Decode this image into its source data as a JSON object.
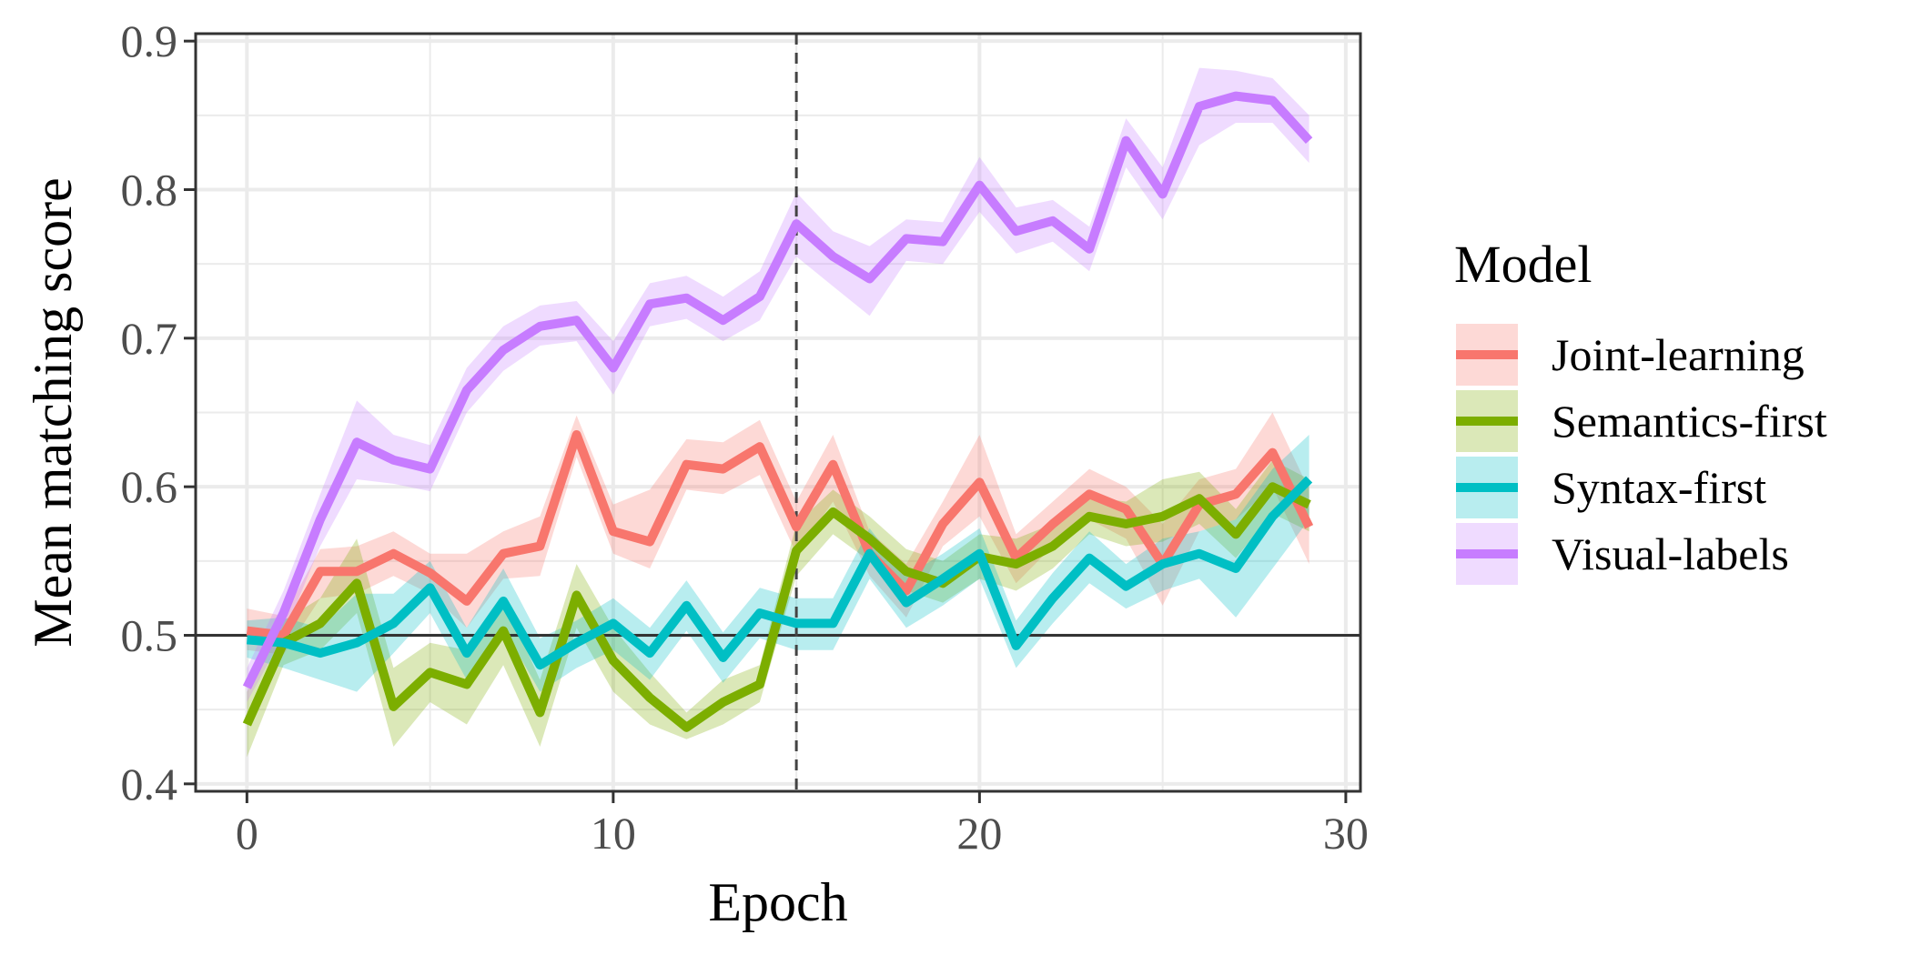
{
  "chart_data": {
    "type": "line",
    "title": "",
    "xlabel": "Epoch",
    "ylabel": "Mean matching score",
    "xlim": [
      -1.4,
      30.4
    ],
    "ylim": [
      0.395,
      0.905
    ],
    "x_ticks": [
      0,
      10,
      20,
      30
    ],
    "y_ticks": [
      0.4,
      0.5,
      0.6,
      0.7,
      0.8,
      0.9
    ],
    "x_tick_labels": [
      "0",
      "10",
      "20",
      "30"
    ],
    "y_tick_labels": [
      "0.4",
      "0.5",
      "0.6",
      "0.7",
      "0.8",
      "0.9"
    ],
    "grid": true,
    "hline": 0.5,
    "vline": 15,
    "legend_title": "Model",
    "legend_position": "right",
    "x": [
      0,
      1,
      2,
      3,
      4,
      5,
      6,
      7,
      8,
      9,
      10,
      11,
      12,
      13,
      14,
      15,
      16,
      17,
      18,
      19,
      20,
      21,
      22,
      23,
      24,
      25,
      26,
      27,
      28,
      29
    ],
    "series": [
      {
        "name": "Joint-learning",
        "color": "#F8766D",
        "values": [
          0.503,
          0.5,
          0.543,
          0.543,
          0.555,
          0.542,
          0.523,
          0.555,
          0.56,
          0.635,
          0.57,
          0.563,
          0.615,
          0.612,
          0.627,
          0.573,
          0.615,
          0.555,
          0.53,
          0.575,
          0.603,
          0.552,
          0.575,
          0.595,
          0.585,
          0.548,
          0.588,
          0.595,
          0.623,
          0.573
        ],
        "lower": [
          0.49,
          0.487,
          0.525,
          0.528,
          0.54,
          0.528,
          0.505,
          0.538,
          0.54,
          0.62,
          0.555,
          0.545,
          0.598,
          0.595,
          0.608,
          0.555,
          0.59,
          0.54,
          0.512,
          0.56,
          0.58,
          0.535,
          0.56,
          0.578,
          0.565,
          0.52,
          0.57,
          0.578,
          0.6,
          0.548
        ],
        "upper": [
          0.518,
          0.513,
          0.558,
          0.56,
          0.57,
          0.555,
          0.555,
          0.57,
          0.58,
          0.648,
          0.588,
          0.598,
          0.632,
          0.63,
          0.645,
          0.59,
          0.635,
          0.57,
          0.548,
          0.59,
          0.635,
          0.568,
          0.59,
          0.612,
          0.6,
          0.575,
          0.605,
          0.612,
          0.65,
          0.598
        ]
      },
      {
        "name": "Semantics-first",
        "color": "#7CAE00",
        "values": [
          0.44,
          0.495,
          0.508,
          0.535,
          0.452,
          0.475,
          0.467,
          0.503,
          0.448,
          0.527,
          0.483,
          0.458,
          0.438,
          0.455,
          0.467,
          0.557,
          0.583,
          0.565,
          0.543,
          0.535,
          0.553,
          0.548,
          0.56,
          0.58,
          0.575,
          0.58,
          0.592,
          0.568,
          0.6,
          0.588
        ],
        "lower": [
          0.418,
          0.48,
          0.49,
          0.515,
          0.425,
          0.455,
          0.44,
          0.48,
          0.425,
          0.505,
          0.462,
          0.44,
          0.43,
          0.44,
          0.455,
          0.54,
          0.568,
          0.55,
          0.53,
          0.522,
          0.538,
          0.53,
          0.545,
          0.568,
          0.56,
          0.563,
          0.575,
          0.552,
          0.582,
          0.57
        ],
        "upper": [
          0.462,
          0.51,
          0.525,
          0.565,
          0.478,
          0.495,
          0.49,
          0.525,
          0.47,
          0.548,
          0.505,
          0.475,
          0.448,
          0.47,
          0.48,
          0.575,
          0.598,
          0.58,
          0.558,
          0.55,
          0.568,
          0.565,
          0.575,
          0.593,
          0.59,
          0.605,
          0.61,
          0.585,
          0.618,
          0.605
        ]
      },
      {
        "name": "Syntax-first",
        "color": "#00BFC4",
        "values": [
          0.497,
          0.495,
          0.488,
          0.495,
          0.508,
          0.532,
          0.488,
          0.523,
          0.48,
          0.495,
          0.508,
          0.488,
          0.52,
          0.485,
          0.515,
          0.508,
          0.508,
          0.555,
          0.522,
          0.538,
          0.555,
          0.493,
          0.525,
          0.552,
          0.533,
          0.548,
          0.555,
          0.545,
          0.58,
          0.605
        ],
        "lower": [
          0.485,
          0.478,
          0.47,
          0.462,
          0.488,
          0.515,
          0.47,
          0.505,
          0.462,
          0.478,
          0.49,
          0.47,
          0.503,
          0.468,
          0.498,
          0.49,
          0.49,
          0.538,
          0.505,
          0.52,
          0.538,
          0.478,
          0.508,
          0.535,
          0.518,
          0.53,
          0.538,
          0.512,
          0.545,
          0.578
        ],
        "upper": [
          0.51,
          0.512,
          0.505,
          0.528,
          0.528,
          0.55,
          0.505,
          0.545,
          0.498,
          0.51,
          0.525,
          0.505,
          0.537,
          0.502,
          0.532,
          0.525,
          0.525,
          0.572,
          0.54,
          0.555,
          0.572,
          0.51,
          0.542,
          0.57,
          0.548,
          0.565,
          0.57,
          0.578,
          0.612,
          0.635
        ]
      },
      {
        "name": "Visual-labels",
        "color": "#C77CFF",
        "values": [
          0.465,
          0.515,
          0.578,
          0.63,
          0.618,
          0.612,
          0.665,
          0.692,
          0.708,
          0.712,
          0.68,
          0.723,
          0.727,
          0.712,
          0.728,
          0.777,
          0.755,
          0.74,
          0.767,
          0.765,
          0.803,
          0.772,
          0.779,
          0.76,
          0.833,
          0.797,
          0.856,
          0.863,
          0.86,
          0.833
        ],
        "lower": [
          0.455,
          0.5,
          0.56,
          0.605,
          0.602,
          0.597,
          0.65,
          0.678,
          0.695,
          0.698,
          0.662,
          0.708,
          0.713,
          0.698,
          0.712,
          0.755,
          0.735,
          0.715,
          0.752,
          0.75,
          0.785,
          0.757,
          0.765,
          0.745,
          0.815,
          0.78,
          0.83,
          0.845,
          0.845,
          0.818
        ],
        "upper": [
          0.478,
          0.53,
          0.595,
          0.658,
          0.635,
          0.628,
          0.68,
          0.708,
          0.722,
          0.725,
          0.698,
          0.737,
          0.742,
          0.728,
          0.745,
          0.798,
          0.772,
          0.762,
          0.78,
          0.778,
          0.822,
          0.788,
          0.793,
          0.775,
          0.848,
          0.815,
          0.882,
          0.88,
          0.875,
          0.85
        ]
      }
    ]
  }
}
